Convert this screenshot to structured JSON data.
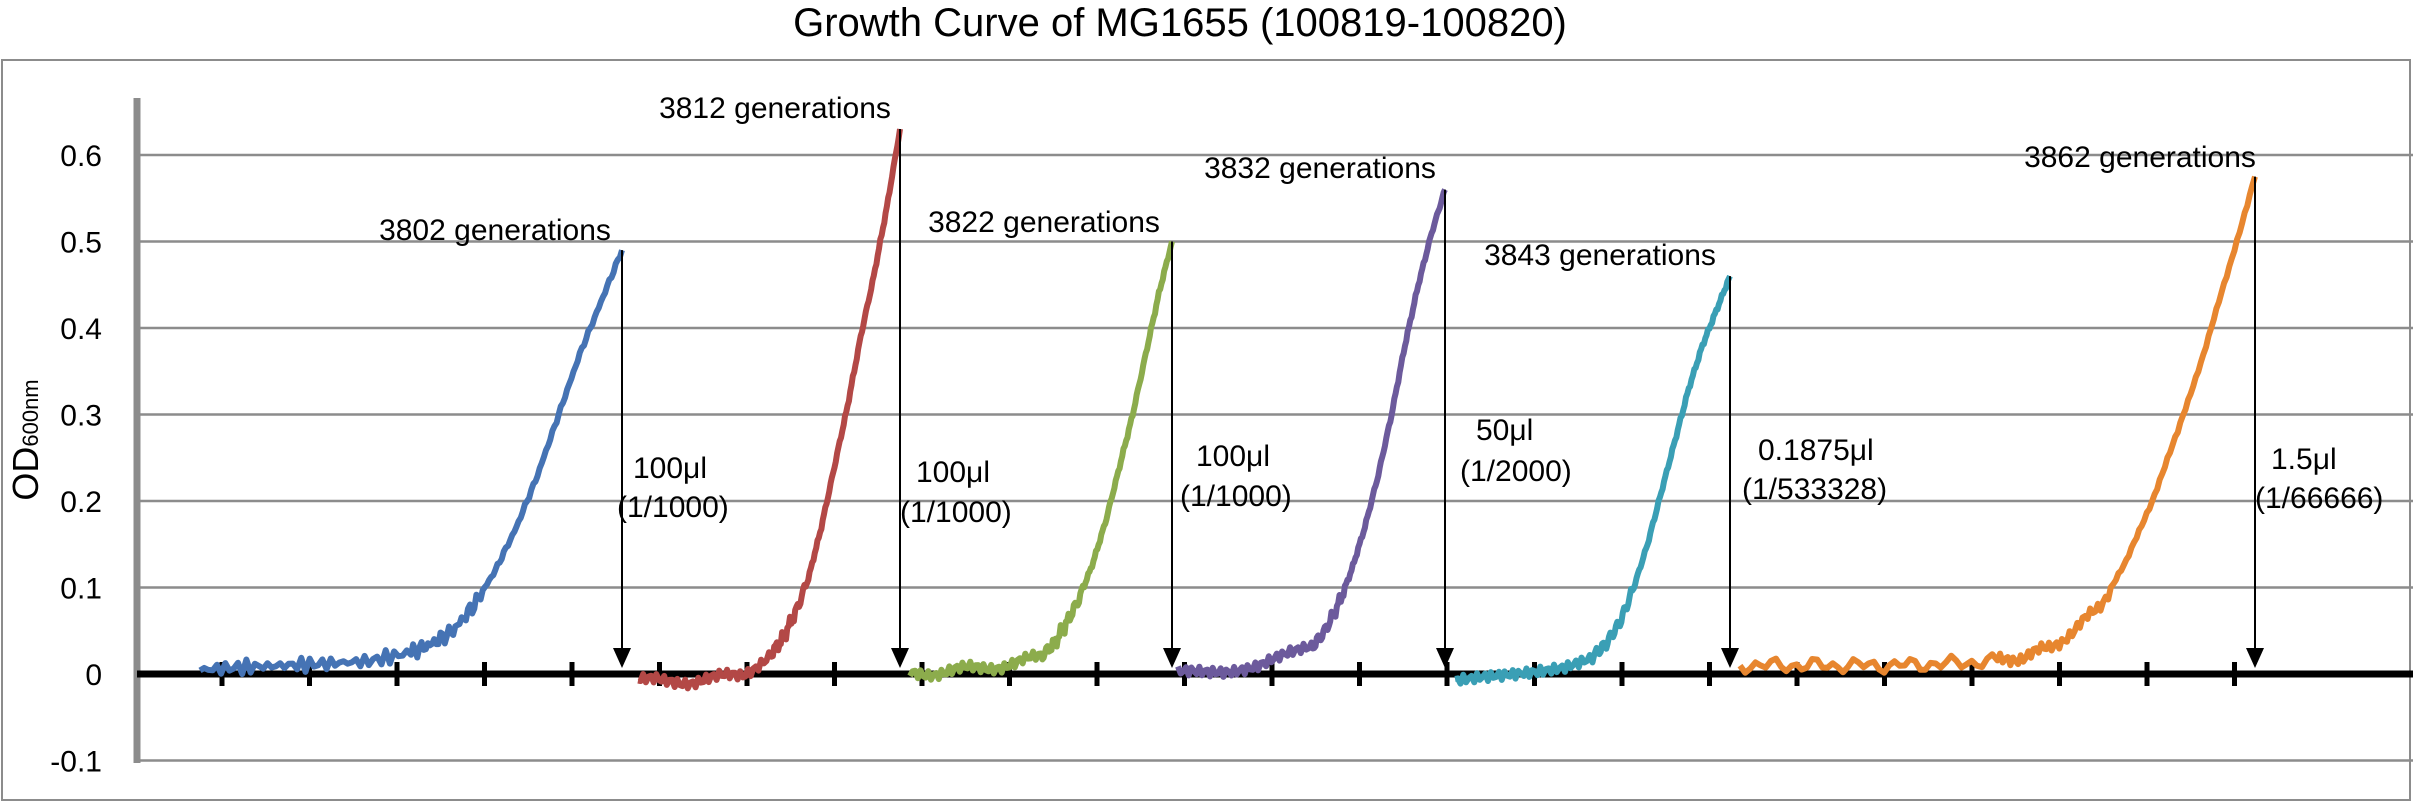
{
  "chart_data": {
    "type": "line",
    "title": "Growth Curve of MG1655 (100819-100820)",
    "ylabel": "OD",
    "ylabel_subscript": "600nm",
    "ylim": [
      -0.1,
      0.65
    ],
    "yticks": [
      -0.1,
      0,
      0.1,
      0.2,
      0.3,
      0.4,
      0.5,
      0.6
    ],
    "ytick_labels": [
      "-0.1",
      "0",
      "0.1",
      "0.2",
      "0.3",
      "0.4",
      "0.5",
      "0.6"
    ],
    "grid": true,
    "legend": "none",
    "series": [
      {
        "color": "#4573b4",
        "x": [
          0,
          0.1,
          0.2,
          0.3,
          0.4,
          0.5,
          0.55,
          0.6,
          0.65,
          0.7,
          0.75,
          0.8,
          0.85,
          0.9,
          0.95,
          1.0
        ],
        "y": [
          0.005,
          0.008,
          0.01,
          0.012,
          0.015,
          0.025,
          0.035,
          0.05,
          0.08,
          0.12,
          0.17,
          0.23,
          0.3,
          0.37,
          0.43,
          0.49
        ],
        "label": "3802 generations",
        "annotation": [
          "100μl",
          "(1/1000)"
        ]
      },
      {
        "color": "#b34846",
        "x": [
          0,
          0.1,
          0.2,
          0.3,
          0.4,
          0.5,
          0.55,
          0.6,
          0.65,
          0.7,
          0.75,
          0.8,
          0.85,
          0.9,
          0.95,
          1.0
        ],
        "y": [
          -0.005,
          -0.01,
          -0.008,
          -0.005,
          0.0,
          0.02,
          0.04,
          0.07,
          0.11,
          0.17,
          0.24,
          0.31,
          0.39,
          0.46,
          0.54,
          0.63
        ],
        "label": "3812 generations",
        "annotation": [
          "100μl",
          "(1/1000)"
        ]
      },
      {
        "color": "#8cac4c",
        "x": [
          0,
          0.1,
          0.2,
          0.3,
          0.4,
          0.5,
          0.55,
          0.6,
          0.65,
          0.7,
          0.75,
          0.8,
          0.85,
          0.9,
          0.95,
          1.0
        ],
        "y": [
          0.0,
          0.002,
          0.005,
          0.008,
          0.012,
          0.02,
          0.035,
          0.06,
          0.09,
          0.13,
          0.18,
          0.24,
          0.3,
          0.37,
          0.44,
          0.5
        ],
        "label": "3822 generations",
        "annotation": [
          "100μl",
          "(1/1000)"
        ]
      },
      {
        "color": "#6c5a9c",
        "x": [
          0,
          0.1,
          0.2,
          0.3,
          0.4,
          0.5,
          0.55,
          0.6,
          0.65,
          0.7,
          0.75,
          0.8,
          0.85,
          0.9,
          0.95,
          1.0
        ],
        "y": [
          0.0,
          0.003,
          0.006,
          0.01,
          0.02,
          0.03,
          0.05,
          0.08,
          0.12,
          0.17,
          0.23,
          0.3,
          0.38,
          0.45,
          0.51,
          0.56
        ],
        "label": "3832 generations",
        "annotation": [
          "50μl",
          "(1/2000)"
        ]
      },
      {
        "color": "#3a9fb5",
        "x": [
          0,
          0.1,
          0.2,
          0.3,
          0.4,
          0.5,
          0.55,
          0.6,
          0.65,
          0.7,
          0.75,
          0.8,
          0.85,
          0.9,
          0.95,
          1.0
        ],
        "y": [
          -0.005,
          0.0,
          0.003,
          0.006,
          0.01,
          0.02,
          0.035,
          0.06,
          0.1,
          0.15,
          0.21,
          0.27,
          0.33,
          0.38,
          0.42,
          0.46
        ],
        "label": "3843 generations",
        "annotation": [
          "0.1875μl",
          "(1/533328)"
        ]
      },
      {
        "color": "#e7862f",
        "x": [
          0,
          0.1,
          0.2,
          0.3,
          0.4,
          0.5,
          0.55,
          0.6,
          0.65,
          0.7,
          0.75,
          0.8,
          0.85,
          0.9,
          0.95,
          1.0
        ],
        "y": [
          0.01,
          0.01,
          0.01,
          0.01,
          0.012,
          0.015,
          0.02,
          0.03,
          0.05,
          0.08,
          0.13,
          0.2,
          0.28,
          0.37,
          0.47,
          0.575
        ],
        "label": "3862 generations",
        "annotation": [
          "1.5μl",
          "(1/66666)"
        ]
      }
    ]
  }
}
